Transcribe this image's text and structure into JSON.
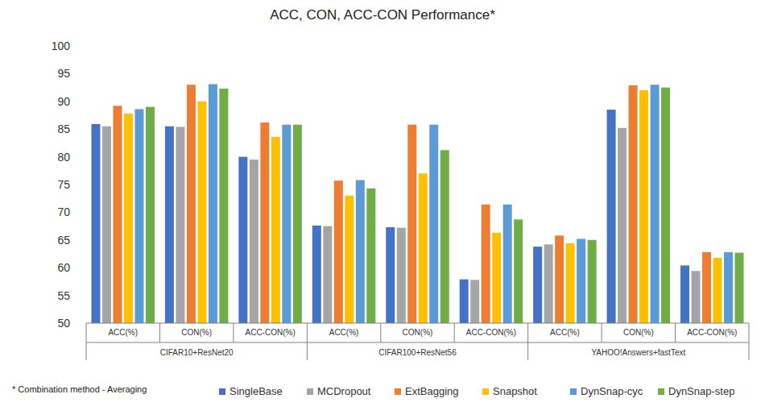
{
  "chart_data": {
    "type": "bar",
    "title": "ACC, CON, ACC-CON Performance*",
    "footnote": "* Combination method - Averaging",
    "categories": [
      "ACC(%)",
      "CON(%)",
      "ACC-CON(%)",
      "ACC(%)",
      "CON(%)",
      "ACC-CON(%)",
      "ACC(%)",
      "CON(%)",
      "ACC-CON(%)"
    ],
    "groups": [
      "CIFAR10+ResNet20",
      "CIFAR100+ResNet56",
      "YAHOO!Answers+fastText"
    ],
    "series": [
      {
        "name": "SingleBase",
        "color": "#4472c4",
        "values": [
          85.9,
          85.5,
          80.0,
          67.6,
          67.3,
          57.9,
          63.8,
          88.5,
          60.4
        ]
      },
      {
        "name": "MCDropout",
        "color": "#a5a5a5",
        "values": [
          85.5,
          85.4,
          79.5,
          67.5,
          67.2,
          57.8,
          64.2,
          85.2,
          59.4
        ]
      },
      {
        "name": "ExtBagging",
        "color": "#ed7d31",
        "values": [
          89.2,
          93.0,
          86.2,
          75.7,
          85.8,
          71.4,
          65.8,
          92.9,
          62.8
        ]
      },
      {
        "name": "Snapshot",
        "color": "#ffc000",
        "values": [
          87.8,
          90.0,
          83.6,
          73.0,
          77.0,
          66.3,
          64.4,
          92.0,
          61.8
        ]
      },
      {
        "name": "DynSnap-cyc",
        "color": "#5b9bd5",
        "values": [
          88.6,
          93.1,
          85.8,
          75.8,
          85.8,
          71.4,
          65.2,
          93.0,
          62.8
        ]
      },
      {
        "name": "DynSnap-step",
        "color": "#70ad47",
        "values": [
          89.0,
          92.3,
          85.8,
          74.3,
          81.2,
          68.7,
          65.0,
          92.5,
          62.7
        ]
      }
    ],
    "ylim": [
      50,
      100
    ],
    "yticks": [
      50,
      55,
      60,
      65,
      70,
      75,
      80,
      85,
      90,
      95,
      100
    ],
    "grid": false,
    "legend": "bottom"
  }
}
